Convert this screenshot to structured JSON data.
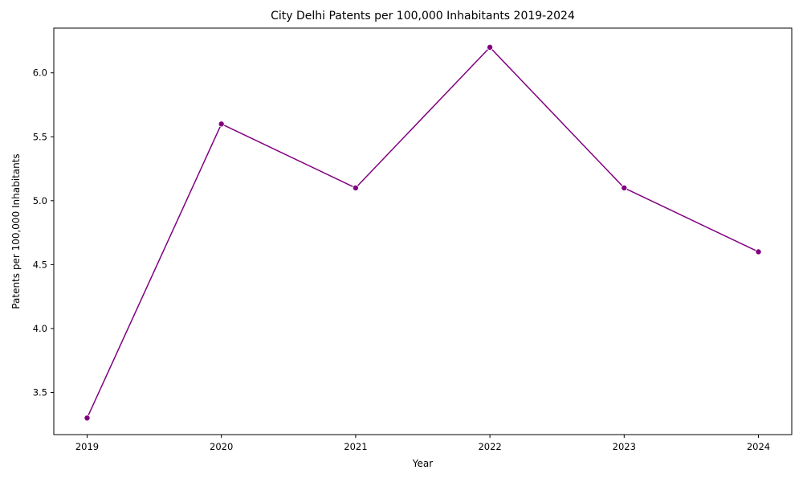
{
  "chart_data": {
    "type": "line",
    "title": "City Delhi Patents per 100,000 Inhabitants 2019-2024",
    "xlabel": "Year",
    "ylabel": "Patents per 100,000 Inhabitants",
    "x": [
      "2019",
      "2020",
      "2021",
      "2022",
      "2023",
      "2024"
    ],
    "series": [
      {
        "values": [
          3.3,
          5.6,
          5.1,
          6.2,
          5.1,
          4.6
        ],
        "color": "#800080",
        "marker": "circle"
      }
    ],
    "ylim": [
      3.17,
      6.35
    ],
    "yticks": [
      "3.5",
      "4.0",
      "4.5",
      "5.0",
      "5.5",
      "6.0"
    ],
    "grid": false,
    "legend": "none"
  }
}
